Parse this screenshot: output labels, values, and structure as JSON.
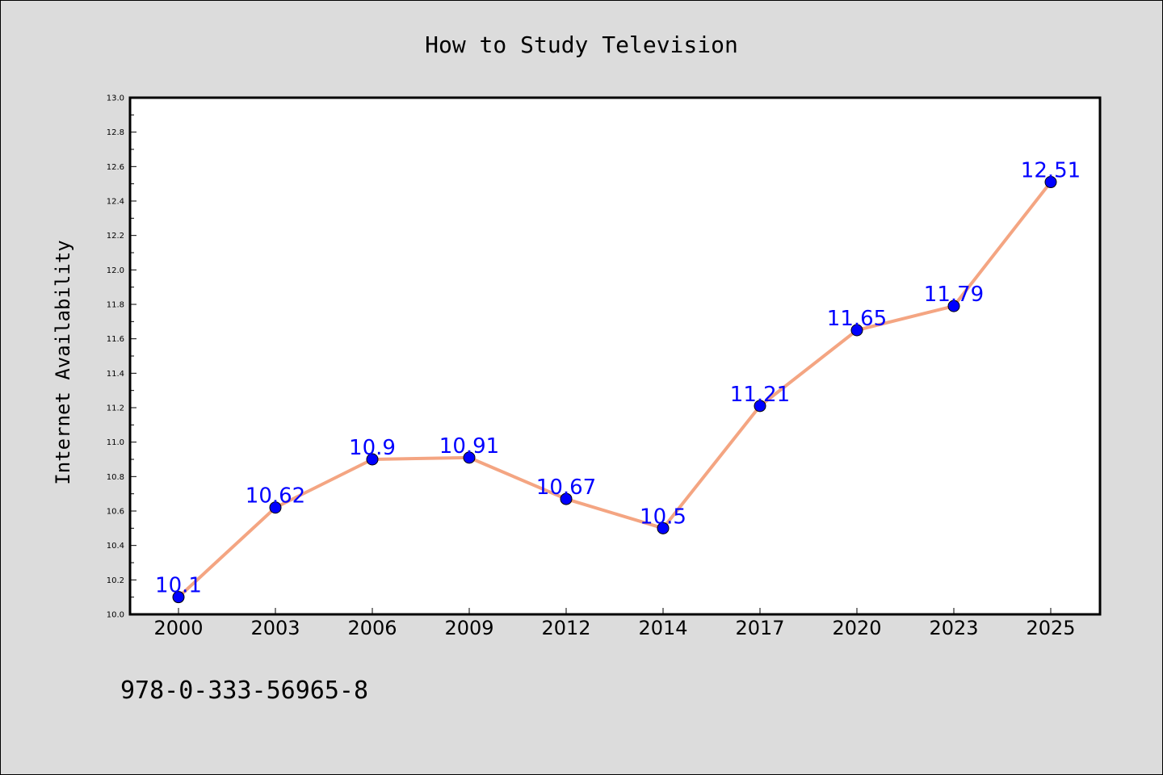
{
  "chart_data": {
    "type": "line",
    "title": "How to Study Television",
    "xlabel": "",
    "ylabel": "Internet Availability",
    "categories": [
      "2000",
      "2003",
      "2006",
      "2009",
      "2012",
      "2014",
      "2017",
      "2020",
      "2023",
      "2025"
    ],
    "series": [
      {
        "values": [
          10.1,
          10.62,
          10.9,
          10.91,
          10.67,
          10.5,
          11.21,
          11.65,
          11.79,
          12.51
        ],
        "data_labels": [
          "10.1",
          "10.62",
          "10.9",
          "10.91",
          "10.67",
          "10.5",
          "11.21",
          "11.65",
          "11.79",
          "12.51"
        ],
        "line_color": "#f4a582",
        "marker_color": "#0000ff"
      }
    ],
    "ylim": [
      10.0,
      13.0
    ],
    "yticks": [
      "10.0",
      "10.2",
      "10.4",
      "10.6",
      "10.8",
      "11.0",
      "11.2",
      "11.4",
      "11.6",
      "11.8",
      "12.0",
      "12.2",
      "12.4",
      "12.6",
      "12.8",
      "13.0"
    ],
    "grid": false,
    "legend": "none"
  },
  "footer_text": "978-0-333-56965-8",
  "colors": {
    "background": "#dcdcdc",
    "plot_background": "#ffffff",
    "label_color": "#0000ff"
  }
}
